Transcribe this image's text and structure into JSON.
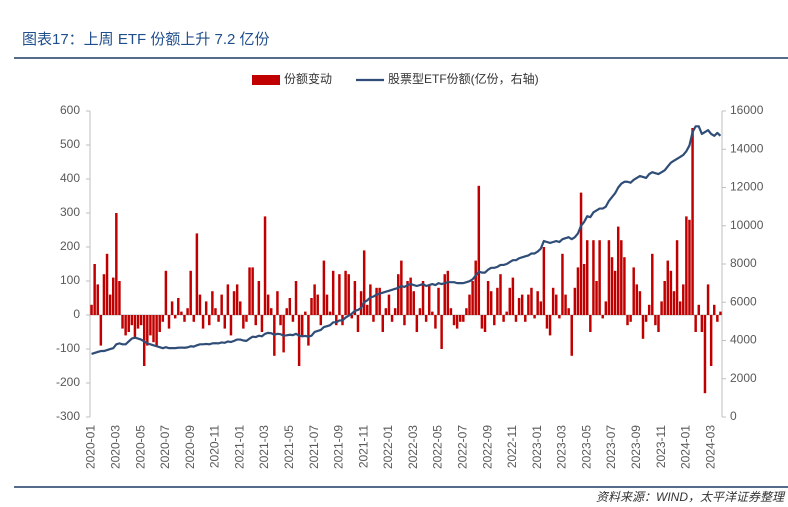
{
  "chart_data": {
    "type": "bar",
    "title": "图表17：上周 ETF 份额上升 7.2 亿份",
    "source": "资料来源：WIND，太平洋证券整理",
    "categories": [
      "2020-01",
      null,
      null,
      null,
      null,
      null,
      null,
      null,
      "2020-03",
      null,
      null,
      null,
      null,
      null,
      null,
      null,
      "2020-05",
      null,
      null,
      null,
      null,
      null,
      null,
      null,
      "2020-07",
      null,
      null,
      null,
      null,
      null,
      null,
      null,
      "2020-09",
      null,
      null,
      null,
      null,
      null,
      null,
      null,
      "2020-11",
      null,
      null,
      null,
      null,
      null,
      null,
      null,
      "2021-01",
      null,
      null,
      null,
      null,
      null,
      null,
      null,
      "2021-03",
      null,
      null,
      null,
      null,
      null,
      null,
      null,
      "2021-05",
      null,
      null,
      null,
      null,
      null,
      null,
      null,
      "2021-07",
      null,
      null,
      null,
      null,
      null,
      null,
      null,
      "2021-09",
      null,
      null,
      null,
      null,
      null,
      null,
      null,
      "2021-11",
      null,
      null,
      null,
      null,
      null,
      null,
      null,
      "2022-01",
      null,
      null,
      null,
      null,
      null,
      null,
      null,
      "2022-03",
      null,
      null,
      null,
      null,
      null,
      null,
      null,
      "2022-05",
      null,
      null,
      null,
      null,
      null,
      null,
      null,
      "2022-07",
      null,
      null,
      null,
      null,
      null,
      null,
      null,
      "2022-09",
      null,
      null,
      null,
      null,
      null,
      null,
      null,
      "2022-11",
      null,
      null,
      null,
      null,
      null,
      null,
      null,
      "2023-01",
      null,
      null,
      null,
      null,
      null,
      null,
      null,
      "2023-03",
      null,
      null,
      null,
      null,
      null,
      null,
      null,
      "2023-05",
      null,
      null,
      null,
      null,
      null,
      null,
      null,
      "2023-07",
      null,
      null,
      null,
      null,
      null,
      null,
      null,
      "2023-09",
      null,
      null,
      null,
      null,
      null,
      null,
      null,
      "2023-11",
      null,
      null,
      null,
      null,
      null,
      null,
      null,
      "2024-01",
      null,
      null,
      null,
      null,
      null,
      null,
      null,
      "2024-03",
      null,
      null,
      null
    ],
    "series": [
      {
        "name": "份额变动",
        "type": "bar",
        "color": "#c00000",
        "values": [
          30,
          150,
          90,
          -90,
          120,
          180,
          60,
          110,
          300,
          100,
          -40,
          -60,
          -50,
          -30,
          -70,
          -40,
          -30,
          -150,
          -90,
          -60,
          -80,
          -90,
          -50,
          -20,
          130,
          -40,
          40,
          -10,
          50,
          10,
          -20,
          20,
          130,
          -20,
          240,
          60,
          -40,
          40,
          -30,
          70,
          20,
          -20,
          60,
          -40,
          90,
          -60,
          70,
          90,
          40,
          -40,
          -20,
          140,
          140,
          -30,
          100,
          -50,
          290,
          60,
          20,
          -120,
          70,
          -30,
          -110,
          20,
          50,
          -20,
          100,
          -150,
          -60,
          10,
          -90,
          50,
          90,
          60,
          -30,
          160,
          60,
          10,
          130,
          -30,
          120,
          -30,
          130,
          120,
          -10,
          100,
          -50,
          70,
          190,
          30,
          90,
          -20,
          80,
          80,
          -50,
          20,
          60,
          -20,
          20,
          120,
          160,
          -30,
          100,
          110,
          70,
          -50,
          20,
          100,
          -20,
          90,
          10,
          -40,
          80,
          -100,
          120,
          130,
          20,
          -30,
          -40,
          -20,
          -20,
          20,
          60,
          100,
          160,
          380,
          -40,
          -50,
          100,
          70,
          -30,
          80,
          120,
          -20,
          10,
          80,
          110,
          -20,
          50,
          60,
          -20,
          60,
          80,
          -10,
          70,
          40,
          200,
          -40,
          -60,
          80,
          60,
          -10,
          180,
          60,
          20,
          -120,
          80,
          140,
          360,
          150,
          220,
          -50,
          220,
          100,
          220,
          -10,
          40,
          220,
          170,
          130,
          260,
          220,
          170,
          -30,
          -20,
          140,
          90,
          70,
          -70,
          -20,
          30,
          180,
          -30,
          -50,
          40,
          100,
          160,
          130,
          70,
          220,
          40,
          90,
          290,
          280,
          550,
          -50,
          30,
          -50,
          -230,
          90,
          -150,
          30,
          -20,
          10
        ]
      },
      {
        "name": "股票型ETF份额(亿份，右轴)",
        "type": "line",
        "axis": "y2",
        "color": "#2f4d77",
        "values": [
          3300,
          3350,
          3400,
          3450,
          3450,
          3500,
          3550,
          3600,
          3800,
          3850,
          3800,
          3800,
          3950,
          4100,
          4150,
          4100,
          4050,
          3950,
          3850,
          3800,
          3750,
          3700,
          3650,
          3600,
          3650,
          3600,
          3600,
          3600,
          3620,
          3630,
          3620,
          3640,
          3700,
          3680,
          3750,
          3800,
          3800,
          3820,
          3800,
          3850,
          3860,
          3850,
          3900,
          3880,
          3950,
          3920,
          3980,
          4050,
          4050,
          4000,
          3980,
          4100,
          4200,
          4180,
          4250,
          4220,
          4350,
          4400,
          4380,
          4300,
          4350,
          4330,
          4250,
          4270,
          4300,
          4280,
          4350,
          4250,
          4220,
          4240,
          4200,
          4250,
          4450,
          4500,
          4550,
          4700,
          4750,
          4800,
          4950,
          4950,
          5050,
          5050,
          5200,
          5300,
          5400,
          5550,
          5600,
          5700,
          6000,
          6100,
          6250,
          6300,
          6400,
          6450,
          6500,
          6550,
          6600,
          6650,
          6700,
          6750,
          6850,
          6800,
          6900,
          6950,
          6900,
          6850,
          6900,
          6950,
          6850,
          6900,
          6950,
          6900,
          7000,
          6950,
          7000,
          7050,
          7050,
          7050,
          7000,
          7000,
          7000,
          7050,
          7100,
          7200,
          7400,
          7600,
          7550,
          7550,
          7700,
          7800,
          7800,
          7850,
          7950,
          7950,
          8000,
          8100,
          8200,
          8200,
          8300,
          8350,
          8400,
          8450,
          8550,
          8550,
          8650,
          8800,
          9200,
          9150,
          9100,
          9150,
          9200,
          9150,
          9300,
          9350,
          9400,
          9300,
          9400,
          9600,
          10000,
          10200,
          10500,
          10450,
          10700,
          10800,
          10900,
          10900,
          11000,
          11300,
          11500,
          11700,
          12000,
          12200,
          12300,
          12300,
          12250,
          12400,
          12500,
          12600,
          12550,
          12500,
          12700,
          12800,
          12750,
          12700,
          12800,
          12900,
          13100,
          13300,
          13400,
          13500,
          13600,
          13700,
          13900,
          14200,
          14900,
          15200,
          15200,
          14800,
          14900,
          15000,
          14800,
          14700,
          14850,
          14700
        ]
      }
    ],
    "ylim": [
      -300,
      600
    ],
    "yticks": [
      -300,
      -200,
      -100,
      0,
      100,
      200,
      300,
      400,
      500,
      600
    ],
    "y2lim": [
      0,
      16000
    ],
    "y2ticks": [
      0,
      2000,
      4000,
      6000,
      8000,
      10000,
      12000,
      14000,
      16000
    ],
    "legend": "top"
  }
}
